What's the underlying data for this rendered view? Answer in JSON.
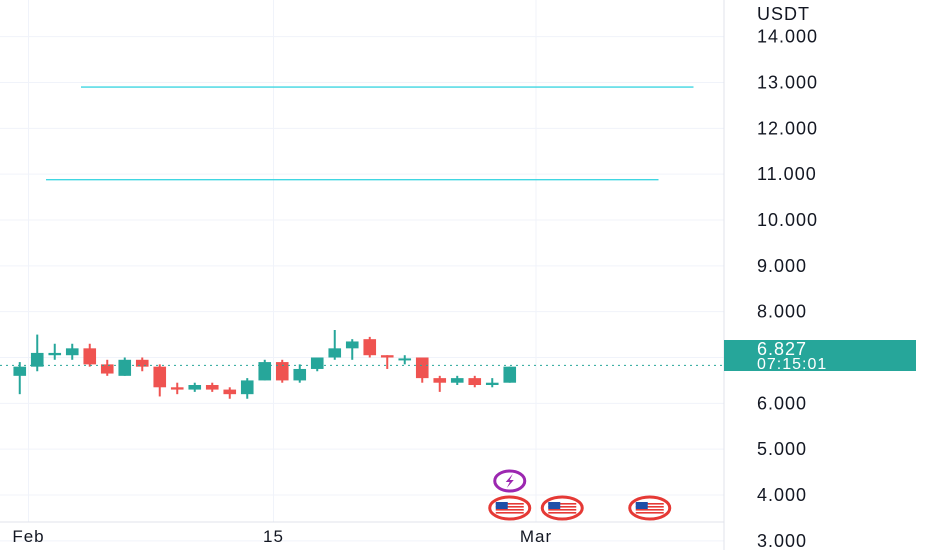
{
  "price_badge": {
    "price": "6.827",
    "countdown": "07:15:01",
    "color": "#26a69a"
  },
  "colors": {
    "up": "#26a69a",
    "down": "#ef5350",
    "level_line": "#3fd6e2",
    "grid": "#f0f3fa",
    "axis_text": "#131722"
  },
  "chart_data": {
    "type": "candlestick",
    "currency": "USDT",
    "ylim": [
      2.8,
      14.8
    ],
    "y_ticks": [
      "14.000",
      "13.000",
      "12.000",
      "11.000",
      "10.000",
      "9.000",
      "8.000",
      "7.000",
      "6.000",
      "5.000",
      "4.000",
      "3.000"
    ],
    "x_ticks": [
      {
        "label": "Feb",
        "date": "2024-02-01"
      },
      {
        "label": "15",
        "date": "2024-02-15"
      },
      {
        "label": "Mar",
        "date": "2024-03-01"
      }
    ],
    "xlim": [
      "2024-01-31",
      "2024-03-11"
    ],
    "last_price": 6.827,
    "horizontal_levels": [
      {
        "value": 12.9,
        "from": "2024-02-04",
        "to": "2024-03-10"
      },
      {
        "value": 10.88,
        "from": "2024-02-02",
        "to": "2024-03-08"
      }
    ],
    "candles": [
      {
        "date": "2024-01-31",
        "open": 6.6,
        "high": 6.9,
        "low": 6.2,
        "close": 6.8
      },
      {
        "date": "2024-02-01",
        "open": 6.8,
        "high": 7.5,
        "low": 6.7,
        "close": 7.1
      },
      {
        "date": "2024-02-02",
        "open": 7.05,
        "high": 7.3,
        "low": 6.95,
        "close": 7.1
      },
      {
        "date": "2024-02-03",
        "open": 7.05,
        "high": 7.3,
        "low": 6.95,
        "close": 7.2
      },
      {
        "date": "2024-02-04",
        "open": 7.2,
        "high": 7.3,
        "low": 6.8,
        "close": 6.85
      },
      {
        "date": "2024-02-05",
        "open": 6.85,
        "high": 6.95,
        "low": 6.6,
        "close": 6.65
      },
      {
        "date": "2024-02-06",
        "open": 6.6,
        "high": 7.0,
        "low": 6.6,
        "close": 6.95
      },
      {
        "date": "2024-02-07",
        "open": 6.95,
        "high": 7.0,
        "low": 6.7,
        "close": 6.8
      },
      {
        "date": "2024-02-08",
        "open": 6.8,
        "high": 6.85,
        "low": 6.15,
        "close": 6.35
      },
      {
        "date": "2024-02-09",
        "open": 6.35,
        "high": 6.45,
        "low": 6.2,
        "close": 6.3
      },
      {
        "date": "2024-02-10",
        "open": 6.3,
        "high": 6.45,
        "low": 6.25,
        "close": 6.4
      },
      {
        "date": "2024-02-11",
        "open": 6.4,
        "high": 6.45,
        "low": 6.25,
        "close": 6.3
      },
      {
        "date": "2024-02-12",
        "open": 6.3,
        "high": 6.35,
        "low": 6.1,
        "close": 6.2
      },
      {
        "date": "2024-02-13",
        "open": 6.2,
        "high": 6.55,
        "low": 6.1,
        "close": 6.5
      },
      {
        "date": "2024-02-14",
        "open": 6.5,
        "high": 6.95,
        "low": 6.5,
        "close": 6.9
      },
      {
        "date": "2024-02-15",
        "open": 6.9,
        "high": 6.95,
        "low": 6.45,
        "close": 6.5
      },
      {
        "date": "2024-02-16",
        "open": 6.5,
        "high": 6.85,
        "low": 6.45,
        "close": 6.75
      },
      {
        "date": "2024-02-17",
        "open": 6.75,
        "high": 7.0,
        "low": 6.7,
        "close": 7.0
      },
      {
        "date": "2024-02-18",
        "open": 7.0,
        "high": 7.6,
        "low": 6.95,
        "close": 7.2
      },
      {
        "date": "2024-02-19",
        "open": 7.2,
        "high": 7.4,
        "low": 6.95,
        "close": 7.35
      },
      {
        "date": "2024-02-20",
        "open": 7.4,
        "high": 7.45,
        "low": 7.0,
        "close": 7.05
      },
      {
        "date": "2024-02-21",
        "open": 7.05,
        "high": 7.05,
        "low": 6.75,
        "close": 7.0
      },
      {
        "date": "2024-02-22",
        "open": 6.95,
        "high": 7.05,
        "low": 6.85,
        "close": 6.98
      },
      {
        "date": "2024-02-23",
        "open": 7.0,
        "high": 7.0,
        "low": 6.45,
        "close": 6.55
      },
      {
        "date": "2024-02-24",
        "open": 6.55,
        "high": 6.6,
        "low": 6.25,
        "close": 6.45
      },
      {
        "date": "2024-02-25",
        "open": 6.45,
        "high": 6.6,
        "low": 6.4,
        "close": 6.55
      },
      {
        "date": "2024-02-26",
        "open": 6.55,
        "high": 6.6,
        "low": 6.35,
        "close": 6.4
      },
      {
        "date": "2024-02-27",
        "open": 6.4,
        "high": 6.55,
        "low": 6.35,
        "close": 6.45
      },
      {
        "date": "2024-02-28",
        "open": 6.45,
        "high": 6.8,
        "low": 6.45,
        "close": 6.8
      }
    ],
    "event_markers": [
      {
        "date": "2024-02-28",
        "icon": "lightning-icon",
        "row": 1
      },
      {
        "date": "2024-02-28",
        "icon": "us-flag-icon",
        "row": 2
      },
      {
        "date": "2024-03-02",
        "icon": "us-flag-icon",
        "row": 2
      },
      {
        "date": "2024-03-07",
        "icon": "us-flag-icon",
        "row": 2
      }
    ]
  }
}
